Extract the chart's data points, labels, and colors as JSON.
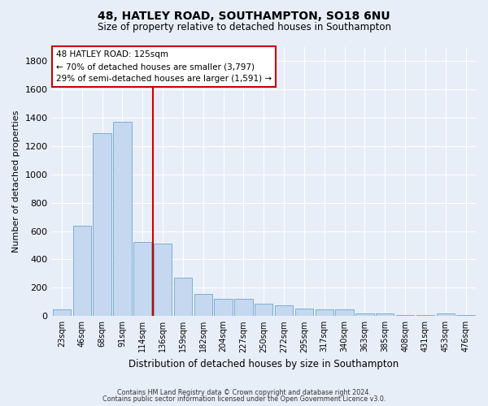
{
  "title": "48, HATLEY ROAD, SOUTHAMPTON, SO18 6NU",
  "subtitle": "Size of property relative to detached houses in Southampton",
  "xlabel": "Distribution of detached houses by size in Southampton",
  "ylabel": "Number of detached properties",
  "categories": [
    "23sqm",
    "46sqm",
    "68sqm",
    "91sqm",
    "114sqm",
    "136sqm",
    "159sqm",
    "182sqm",
    "204sqm",
    "227sqm",
    "250sqm",
    "272sqm",
    "295sqm",
    "317sqm",
    "340sqm",
    "363sqm",
    "385sqm",
    "408sqm",
    "431sqm",
    "453sqm",
    "476sqm"
  ],
  "values": [
    50,
    640,
    1290,
    1370,
    520,
    510,
    270,
    155,
    120,
    120,
    90,
    75,
    55,
    50,
    50,
    20,
    20,
    5,
    5,
    20,
    5
  ],
  "bar_color": "#c5d8f0",
  "bar_edge_color": "#7aafd4",
  "vline_color": "#cc0000",
  "annotation_line1": "48 HATLEY ROAD: 125sqm",
  "annotation_line2": "← 70% of detached houses are smaller (3,797)",
  "annotation_line3": "29% of semi-detached houses are larger (1,591) →",
  "annotation_box_color": "#ffffff",
  "annotation_box_edge": "#cc0000",
  "ylim": [
    0,
    1900
  ],
  "yticks": [
    0,
    200,
    400,
    600,
    800,
    1000,
    1200,
    1400,
    1600,
    1800
  ],
  "footnote_line1": "Contains HM Land Registry data © Crown copyright and database right 2024.",
  "footnote_line2": "Contains public sector information licensed under the Open Government Licence v3.0.",
  "bg_color": "#e8eef8",
  "plot_bg": "#e8eef8",
  "grid_color": "#ffffff",
  "vline_xindex": 4.5
}
